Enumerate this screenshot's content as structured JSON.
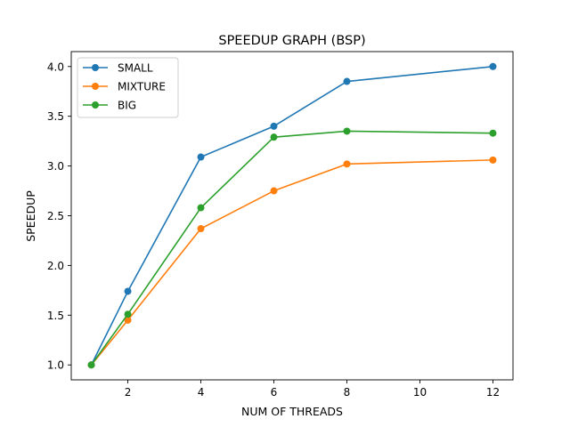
{
  "chart_data": {
    "type": "line",
    "title": "SPEEDUP GRAPH (BSP)",
    "xlabel": "NUM OF THREADS",
    "ylabel": "SPEEDUP",
    "x": [
      1,
      2,
      4,
      6,
      8,
      12
    ],
    "xlim": [
      0.45,
      12.55
    ],
    "ylim": [
      0.85,
      4.15
    ],
    "xticks": [
      2,
      4,
      6,
      8,
      10,
      12
    ],
    "yticks": [
      1.0,
      1.5,
      2.0,
      2.5,
      3.0,
      3.5,
      4.0
    ],
    "xtick_labels": [
      "2",
      "4",
      "6",
      "8",
      "10",
      "12"
    ],
    "ytick_labels": [
      "1.0",
      "1.5",
      "2.0",
      "2.5",
      "3.0",
      "3.5",
      "4.0"
    ],
    "grid": false,
    "legend_position": "top-left",
    "series": [
      {
        "name": "SMALL",
        "color": "#1f77b4",
        "values": [
          1.0,
          1.74,
          3.09,
          3.4,
          3.85,
          4.0
        ]
      },
      {
        "name": "MIXTURE",
        "color": "#ff7f0e",
        "values": [
          1.0,
          1.45,
          2.37,
          2.75,
          3.02,
          3.06
        ]
      },
      {
        "name": "BIG",
        "color": "#2ca02c",
        "values": [
          1.0,
          1.51,
          2.58,
          3.29,
          3.35,
          3.33
        ]
      }
    ]
  }
}
